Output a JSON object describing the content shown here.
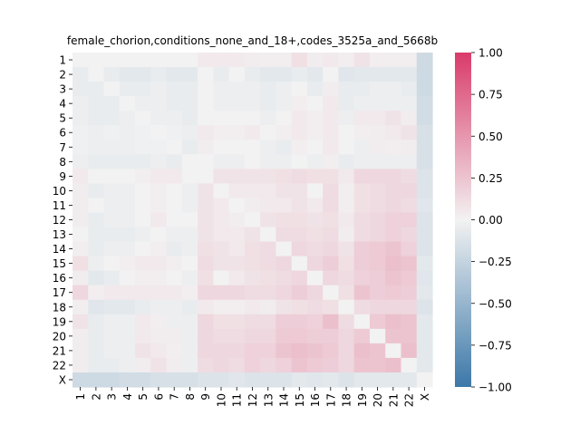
{
  "chart_data": {
    "type": "heatmap",
    "title": "female_chorion,conditions_none_and_18+,codes_3525a_and_5668b",
    "xlabel": "",
    "ylabel": "",
    "row_labels": [
      "1",
      "2",
      "3",
      "4",
      "5",
      "6",
      "7",
      "8",
      "9",
      "10",
      "11",
      "12",
      "13",
      "14",
      "15",
      "16",
      "17",
      "18",
      "19",
      "20",
      "21",
      "22",
      "X"
    ],
    "col_labels": [
      "1",
      "2",
      "3",
      "4",
      "5",
      "6",
      "7",
      "8",
      "9",
      "10",
      "11",
      "12",
      "13",
      "14",
      "15",
      "16",
      "17",
      "18",
      "19",
      "20",
      "21",
      "22",
      "X"
    ],
    "vmin": -1.0,
    "vmax": 1.0,
    "colorbar_ticks": [
      "1.00",
      "0.75",
      "0.50",
      "0.25",
      "0.00",
      "−0.25",
      "−0.50",
      "−0.75",
      "−1.00"
    ],
    "colorbar_tick_values": [
      1.0,
      0.75,
      0.5,
      0.25,
      0.0,
      -0.25,
      -0.5,
      -0.75,
      -1.0
    ],
    "colormap": {
      "low": "#3c78a8",
      "mid": "#f2f2f2",
      "high": "#d93b6a"
    },
    "values": [
      [
        0.0,
        0.0,
        0.0,
        0.0,
        0.0,
        0.0,
        0.0,
        0.0,
        0.05,
        0.05,
        0.05,
        0.03,
        0.02,
        0.02,
        0.1,
        0.03,
        0.05,
        0.02,
        0.08,
        0.02,
        0.02,
        0.02,
        -0.2
      ],
      [
        -0.05,
        0.0,
        -0.05,
        -0.08,
        -0.08,
        -0.05,
        -0.08,
        -0.08,
        0.0,
        -0.05,
        0.0,
        -0.05,
        -0.08,
        -0.08,
        -0.05,
        -0.08,
        0.0,
        -0.1,
        -0.08,
        -0.08,
        -0.08,
        -0.08,
        -0.2
      ],
      [
        -0.05,
        -0.05,
        0.0,
        -0.05,
        -0.05,
        -0.03,
        -0.05,
        -0.05,
        0.0,
        -0.03,
        -0.03,
        -0.03,
        -0.05,
        -0.03,
        0.0,
        -0.05,
        0.03,
        -0.05,
        -0.05,
        -0.03,
        -0.03,
        -0.05,
        -0.2
      ],
      [
        -0.03,
        -0.05,
        -0.05,
        0.0,
        -0.03,
        -0.03,
        -0.05,
        -0.05,
        0.0,
        -0.03,
        -0.03,
        -0.03,
        -0.05,
        -0.03,
        0.02,
        0.0,
        0.05,
        -0.05,
        -0.03,
        -0.03,
        -0.03,
        -0.03,
        -0.18
      ],
      [
        -0.03,
        -0.05,
        -0.05,
        -0.03,
        0.0,
        -0.03,
        -0.03,
        -0.05,
        0.0,
        0.0,
        0.0,
        0.0,
        -0.03,
        0.0,
        0.05,
        0.02,
        0.05,
        -0.03,
        0.05,
        0.05,
        0.08,
        0.03,
        -0.18
      ],
      [
        -0.02,
        -0.03,
        -0.02,
        -0.03,
        -0.02,
        0.0,
        -0.02,
        -0.03,
        0.05,
        0.02,
        0.02,
        0.05,
        0.0,
        0.02,
        0.05,
        0.02,
        0.05,
        0.0,
        0.02,
        0.03,
        0.05,
        0.08,
        -0.15
      ],
      [
        -0.02,
        -0.03,
        -0.03,
        -0.03,
        -0.02,
        -0.02,
        0.0,
        -0.05,
        0.03,
        0.0,
        0.0,
        0.0,
        -0.03,
        -0.05,
        0.02,
        0.0,
        0.05,
        0.0,
        -0.03,
        0.03,
        0.02,
        0.03,
        -0.15
      ],
      [
        -0.03,
        -0.05,
        -0.05,
        -0.05,
        -0.05,
        -0.03,
        -0.05,
        0.0,
        0.0,
        -0.03,
        -0.03,
        0.0,
        -0.03,
        -0.03,
        0.0,
        -0.03,
        0.02,
        -0.05,
        -0.03,
        -0.03,
        -0.03,
        -0.03,
        -0.15
      ],
      [
        0.05,
        0.0,
        0.0,
        0.0,
        0.02,
        0.05,
        0.05,
        0.0,
        0.0,
        0.08,
        0.08,
        0.08,
        0.08,
        0.1,
        0.12,
        0.1,
        0.1,
        0.05,
        0.15,
        0.15,
        0.15,
        0.12,
        -0.12
      ],
      [
        0.03,
        -0.05,
        -0.03,
        -0.03,
        0.0,
        0.02,
        0.0,
        -0.03,
        0.08,
        0.0,
        0.05,
        0.05,
        0.05,
        0.08,
        0.08,
        0.0,
        0.12,
        0.02,
        0.1,
        0.12,
        0.15,
        0.15,
        -0.12
      ],
      [
        0.03,
        0.0,
        -0.03,
        -0.03,
        0.0,
        0.02,
        0.0,
        -0.03,
        0.08,
        0.05,
        0.0,
        0.03,
        0.05,
        0.05,
        0.08,
        0.05,
        0.12,
        0.02,
        0.1,
        0.12,
        0.15,
        0.12,
        -0.1
      ],
      [
        0.03,
        -0.05,
        -0.03,
        -0.03,
        0.0,
        0.05,
        0.0,
        0.0,
        0.08,
        0.05,
        0.03,
        0.0,
        0.08,
        0.1,
        0.1,
        0.08,
        0.1,
        0.05,
        0.12,
        0.15,
        0.18,
        0.18,
        -0.12
      ],
      [
        0.0,
        -0.05,
        -0.05,
        -0.05,
        -0.03,
        0.0,
        -0.03,
        -0.03,
        0.08,
        0.05,
        0.05,
        0.08,
        0.0,
        0.12,
        0.12,
        0.1,
        0.12,
        0.03,
        0.12,
        0.15,
        0.18,
        0.15,
        -0.12
      ],
      [
        0.02,
        -0.05,
        -0.03,
        -0.03,
        0.0,
        0.02,
        -0.05,
        -0.03,
        0.1,
        0.08,
        0.05,
        0.1,
        0.12,
        0.0,
        0.15,
        0.12,
        0.15,
        0.08,
        0.2,
        0.22,
        0.25,
        0.18,
        -0.12
      ],
      [
        0.1,
        -0.03,
        0.0,
        0.02,
        0.05,
        0.05,
        0.02,
        0.0,
        0.12,
        0.08,
        0.08,
        0.1,
        0.12,
        0.15,
        0.0,
        0.15,
        0.2,
        0.1,
        0.2,
        0.22,
        0.28,
        0.25,
        -0.08
      ],
      [
        0.03,
        -0.08,
        -0.05,
        0.0,
        0.02,
        0.02,
        0.0,
        -0.03,
        0.1,
        0.0,
        0.05,
        0.08,
        0.1,
        0.12,
        0.15,
        0.0,
        0.15,
        0.12,
        0.18,
        0.2,
        0.25,
        0.22,
        -0.1
      ],
      [
        0.15,
        0.02,
        0.05,
        0.05,
        0.05,
        0.05,
        0.05,
        0.02,
        0.15,
        0.15,
        0.15,
        0.12,
        0.12,
        0.15,
        0.2,
        0.15,
        0.0,
        0.1,
        0.25,
        0.2,
        0.22,
        0.2,
        -0.08
      ],
      [
        0.02,
        -0.1,
        -0.08,
        -0.08,
        -0.05,
        -0.03,
        -0.03,
        -0.05,
        0.05,
        0.02,
        0.02,
        0.05,
        0.03,
        0.08,
        0.1,
        0.12,
        0.1,
        0.0,
        0.12,
        0.15,
        0.15,
        0.15,
        -0.12
      ],
      [
        0.08,
        -0.05,
        -0.03,
        -0.03,
        0.05,
        0.02,
        -0.03,
        -0.03,
        0.15,
        0.1,
        0.1,
        0.12,
        0.12,
        0.2,
        0.2,
        0.18,
        0.28,
        0.12,
        0.0,
        0.22,
        0.28,
        0.25,
        -0.08
      ],
      [
        0.03,
        -0.05,
        -0.03,
        -0.03,
        0.05,
        0.03,
        0.03,
        -0.03,
        0.15,
        0.12,
        0.12,
        0.15,
        0.15,
        0.22,
        0.22,
        0.2,
        0.2,
        0.15,
        0.22,
        0.0,
        0.25,
        0.25,
        -0.08
      ],
      [
        0.03,
        -0.05,
        -0.03,
        -0.03,
        0.08,
        0.05,
        0.02,
        -0.03,
        0.15,
        0.15,
        0.15,
        0.18,
        0.18,
        0.25,
        0.28,
        0.25,
        0.22,
        0.15,
        0.28,
        0.25,
        0.0,
        0.28,
        -0.08
      ],
      [
        0.03,
        -0.05,
        -0.05,
        -0.03,
        0.03,
        0.08,
        0.03,
        -0.03,
        0.12,
        0.15,
        0.12,
        0.18,
        0.15,
        0.18,
        0.25,
        0.22,
        0.2,
        0.15,
        0.25,
        0.25,
        0.28,
        0.0,
        -0.08
      ],
      [
        -0.2,
        -0.2,
        -0.2,
        -0.18,
        -0.18,
        -0.15,
        -0.15,
        -0.15,
        -0.12,
        -0.12,
        -0.1,
        -0.12,
        -0.12,
        -0.12,
        -0.08,
        -0.1,
        -0.08,
        -0.12,
        -0.08,
        -0.08,
        -0.08,
        -0.08,
        0.0
      ]
    ]
  }
}
